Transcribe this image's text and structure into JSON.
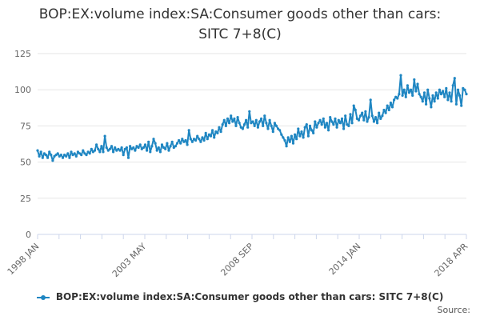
{
  "title_line1": "BOP:EX:volume index:SA:Consumer goods other than cars:",
  "title_line2": "SITC 7+8(C)",
  "source_label": "Source:",
  "colors": {
    "series": "#1f86c2",
    "grid": "#e6e6e6",
    "axis": "#ccd6eb",
    "text": "#666666"
  },
  "chart_data": {
    "type": "line",
    "title": "BOP:EX:volume index:SA:Consumer goods other than cars: SITC 7+8(C)",
    "frequency": "monthly",
    "x_start": "1998 JAN",
    "x_end": "2018 APR",
    "x_ticks": [
      "1998 JAN",
      "2003 MAY",
      "2008 SEP",
      "2014 JAN",
      "2018 APR"
    ],
    "y_ticks": [
      0,
      25,
      50,
      75,
      100,
      125
    ],
    "ylim": [
      0,
      125
    ],
    "grid": true,
    "legend_position": "bottom",
    "series": [
      {
        "name": "BOP:EX:volume index:SA:Consumer goods other than cars: SITC 7+8(C)",
        "values": [
          58,
          54,
          57,
          53,
          56,
          55,
          53,
          57,
          55,
          51,
          54,
          55,
          56,
          54,
          55,
          53,
          55,
          54,
          56,
          53,
          57,
          55,
          56,
          54,
          57,
          56,
          55,
          58,
          56,
          55,
          57,
          56,
          59,
          57,
          58,
          62,
          59,
          57,
          61,
          57,
          68,
          60,
          58,
          59,
          61,
          57,
          60,
          58,
          59,
          58,
          60,
          55,
          59,
          60,
          53,
          61,
          59,
          60,
          58,
          61,
          60,
          62,
          59,
          60,
          62,
          58,
          64,
          57,
          61,
          66,
          63,
          58,
          60,
          57,
          62,
          60,
          59,
          63,
          58,
          61,
          64,
          60,
          61,
          63,
          65,
          63,
          66,
          64,
          65,
          62,
          72,
          66,
          64,
          66,
          65,
          68,
          66,
          64,
          67,
          65,
          70,
          66,
          69,
          68,
          72,
          67,
          71,
          70,
          74,
          71,
          76,
          79,
          75,
          80,
          77,
          82,
          78,
          80,
          75,
          81,
          77,
          74,
          73,
          76,
          79,
          74,
          85,
          77,
          78,
          75,
          79,
          74,
          78,
          80,
          75,
          82,
          77,
          73,
          79,
          75,
          71,
          77,
          75,
          73,
          72,
          69,
          67,
          65,
          61,
          67,
          64,
          68,
          63,
          69,
          66,
          73,
          68,
          71,
          67,
          74,
          76,
          68,
          75,
          72,
          70,
          78,
          74,
          77,
          79,
          76,
          80,
          74,
          77,
          72,
          81,
          78,
          76,
          80,
          74,
          79,
          77,
          80,
          73,
          82,
          76,
          75,
          83,
          77,
          89,
          86,
          80,
          79,
          82,
          84,
          79,
          85,
          78,
          81,
          93,
          82,
          78,
          81,
          77,
          84,
          80,
          82,
          86,
          84,
          89,
          86,
          91,
          88,
          93,
          95,
          94,
          97,
          110,
          96,
          100,
          95,
          103,
          98,
          100,
          96,
          107,
          99,
          104,
          97,
          95,
          92,
          98,
          90,
          100,
          94,
          88,
          96,
          92,
          98,
          94,
          100,
          97,
          99,
          95,
          101,
          93,
          98,
          92,
          103,
          108,
          90,
          100,
          96,
          89,
          101,
          100,
          97
        ]
      }
    ]
  }
}
